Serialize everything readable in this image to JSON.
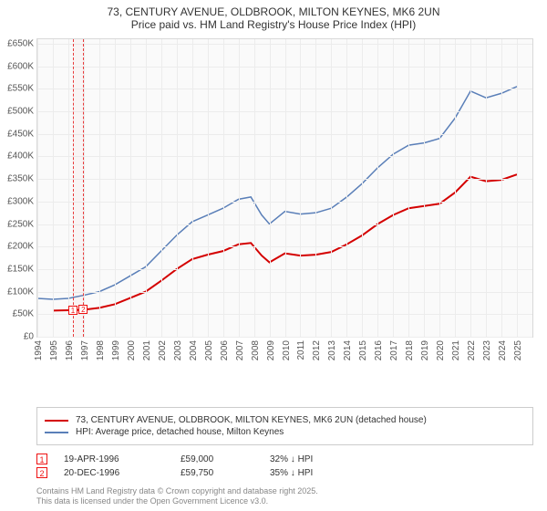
{
  "title": {
    "line1": "73, CENTURY AVENUE, OLDBROOK, MILTON KEYNES, MK6 2UN",
    "line2": "Price paid vs. HM Land Registry's House Price Index (HPI)"
  },
  "chart": {
    "type": "line",
    "background_color": "#fafafa",
    "grid_color": "#ececec",
    "border_color": "#d8d8d8",
    "x": {
      "min": 1994,
      "max": 2026,
      "ticks": [
        1994,
        1995,
        1996,
        1997,
        1998,
        1999,
        2000,
        2001,
        2002,
        2003,
        2004,
        2005,
        2006,
        2007,
        2008,
        2009,
        2010,
        2011,
        2012,
        2013,
        2014,
        2015,
        2016,
        2017,
        2018,
        2019,
        2020,
        2021,
        2022,
        2023,
        2024,
        2025
      ],
      "tick_fontsize": 10,
      "tick_rotation_deg": -90
    },
    "y": {
      "min": 0,
      "max": 660000,
      "ticks": [
        0,
        50000,
        100000,
        150000,
        200000,
        250000,
        300000,
        350000,
        400000,
        450000,
        500000,
        550000,
        600000,
        650000
      ],
      "tick_labels": [
        "£0",
        "£50K",
        "£100K",
        "£150K",
        "£200K",
        "£250K",
        "£300K",
        "£350K",
        "£400K",
        "£450K",
        "£500K",
        "£550K",
        "£600K",
        "£650K"
      ],
      "tick_fontsize": 10
    },
    "sale_band": {
      "from_year": 1996.3,
      "to_year": 1997.0,
      "border_color": "#e83a3a",
      "border_dash": true
    },
    "markers": [
      {
        "idx": "1",
        "x": 1996.3,
        "y": 59000
      },
      {
        "idx": "2",
        "x": 1996.97,
        "y": 59750
      }
    ],
    "series": [
      {
        "name": "price_paid",
        "label": "73, CENTURY AVENUE, OLDBROOK, MILTON KEYNES, MK6 2UN (detached house)",
        "color": "#d40000",
        "line_width": 2,
        "points": [
          [
            1995.0,
            58000
          ],
          [
            1996.3,
            59000
          ],
          [
            1996.97,
            59750
          ],
          [
            1998.0,
            64000
          ],
          [
            1999.0,
            72000
          ],
          [
            2000.0,
            86000
          ],
          [
            2001.0,
            100000
          ],
          [
            2002.0,
            124000
          ],
          [
            2003.0,
            150000
          ],
          [
            2004.0,
            172000
          ],
          [
            2005.0,
            182000
          ],
          [
            2006.0,
            190000
          ],
          [
            2007.0,
            205000
          ],
          [
            2007.8,
            208000
          ],
          [
            2008.5,
            180000
          ],
          [
            2009.0,
            165000
          ],
          [
            2010.0,
            185000
          ],
          [
            2011.0,
            180000
          ],
          [
            2012.0,
            182000
          ],
          [
            2013.0,
            188000
          ],
          [
            2014.0,
            205000
          ],
          [
            2015.0,
            225000
          ],
          [
            2016.0,
            250000
          ],
          [
            2017.0,
            270000
          ],
          [
            2018.0,
            285000
          ],
          [
            2019.0,
            290000
          ],
          [
            2020.0,
            295000
          ],
          [
            2021.0,
            320000
          ],
          [
            2022.0,
            355000
          ],
          [
            2023.0,
            345000
          ],
          [
            2024.0,
            348000
          ],
          [
            2025.0,
            360000
          ]
        ]
      },
      {
        "name": "hpi",
        "label": "HPI: Average price, detached house, Milton Keynes",
        "color": "#5a7fb8",
        "line_width": 1.5,
        "points": [
          [
            1994.0,
            85000
          ],
          [
            1995.0,
            83000
          ],
          [
            1996.0,
            85000
          ],
          [
            1997.0,
            92000
          ],
          [
            1998.0,
            100000
          ],
          [
            1999.0,
            115000
          ],
          [
            2000.0,
            135000
          ],
          [
            2001.0,
            155000
          ],
          [
            2002.0,
            190000
          ],
          [
            2003.0,
            225000
          ],
          [
            2004.0,
            255000
          ],
          [
            2005.0,
            270000
          ],
          [
            2006.0,
            285000
          ],
          [
            2007.0,
            305000
          ],
          [
            2007.8,
            310000
          ],
          [
            2008.5,
            270000
          ],
          [
            2009.0,
            250000
          ],
          [
            2010.0,
            278000
          ],
          [
            2011.0,
            272000
          ],
          [
            2012.0,
            275000
          ],
          [
            2013.0,
            285000
          ],
          [
            2014.0,
            310000
          ],
          [
            2015.0,
            340000
          ],
          [
            2016.0,
            375000
          ],
          [
            2017.0,
            405000
          ],
          [
            2018.0,
            425000
          ],
          [
            2019.0,
            430000
          ],
          [
            2020.0,
            440000
          ],
          [
            2021.0,
            485000
          ],
          [
            2022.0,
            545000
          ],
          [
            2023.0,
            530000
          ],
          [
            2024.0,
            540000
          ],
          [
            2025.0,
            555000
          ]
        ]
      }
    ]
  },
  "legend": {
    "border_color": "#cccccc",
    "items": [
      {
        "color": "#d40000",
        "label": "73, CENTURY AVENUE, OLDBROOK, MILTON KEYNES, MK6 2UN (detached house)"
      },
      {
        "color": "#5a7fb8",
        "label": "HPI: Average price, detached house, Milton Keynes"
      }
    ]
  },
  "sales": [
    {
      "idx": "1",
      "date": "19-APR-1996",
      "price": "£59,000",
      "rel": "32% ↓ HPI"
    },
    {
      "idx": "2",
      "date": "20-DEC-1996",
      "price": "£59,750",
      "rel": "35% ↓ HPI"
    }
  ],
  "footer": {
    "line1": "Contains HM Land Registry data © Crown copyright and database right 2025.",
    "line2": "This data is licensed under the Open Government Licence v3.0."
  }
}
